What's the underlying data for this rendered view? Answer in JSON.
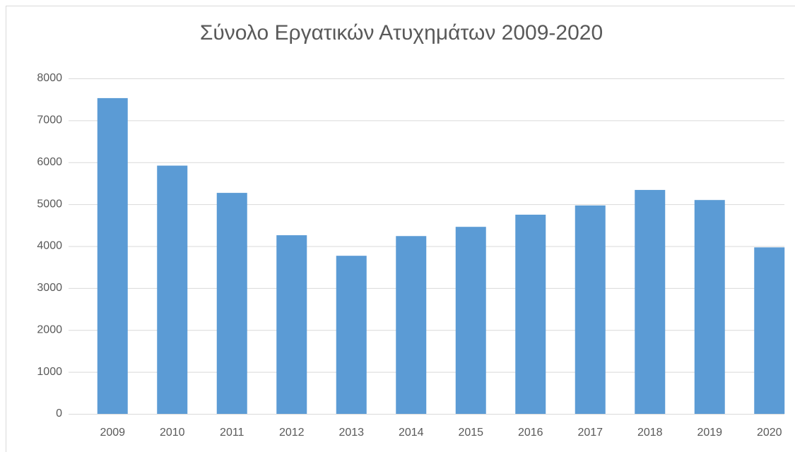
{
  "chart_data": {
    "type": "bar",
    "title": "Σύνολο Εργατικών Ατυχημάτων 2009-2020",
    "categories": [
      "2009",
      "2010",
      "2011",
      "2012",
      "2013",
      "2014",
      "2015",
      "2016",
      "2017",
      "2018",
      "2019",
      "2020"
    ],
    "values": [
      7530,
      5920,
      5270,
      4260,
      3770,
      4240,
      4460,
      4750,
      4970,
      5340,
      5100,
      3970
    ],
    "color": "#5b9bd5",
    "ylim": [
      0,
      8000
    ],
    "yticks": [
      0,
      1000,
      2000,
      3000,
      4000,
      5000,
      6000,
      7000,
      8000
    ],
    "grid": true
  }
}
